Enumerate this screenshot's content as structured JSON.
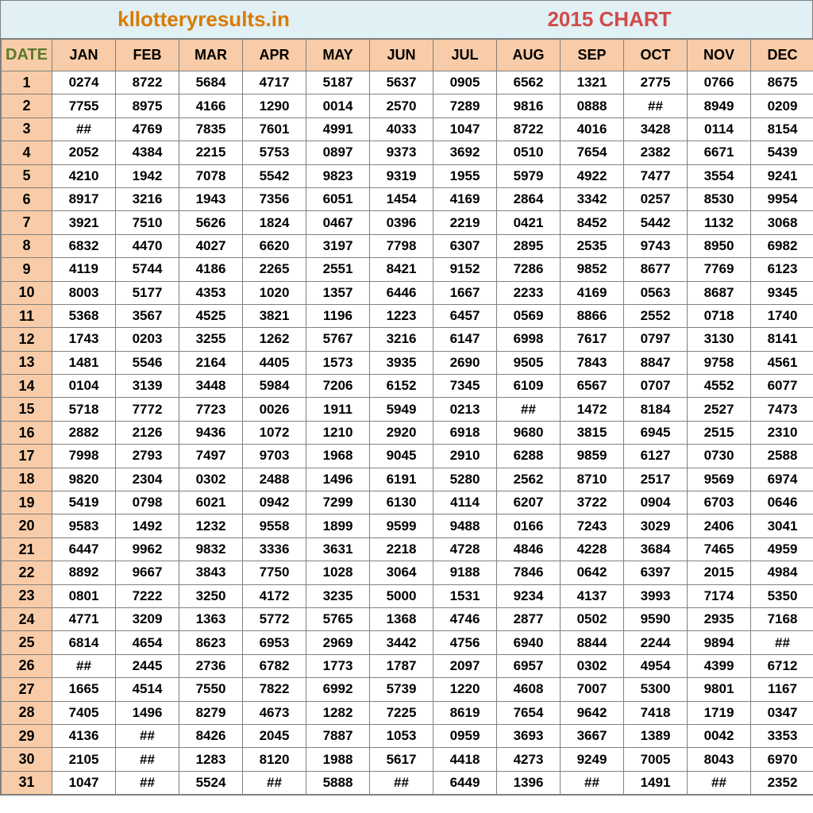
{
  "header": {
    "site_name": "kllotteryresults.in",
    "chart_title": "2015 CHART"
  },
  "table": {
    "type": "calendar-table",
    "date_header": "DATE",
    "months": [
      "JAN",
      "FEB",
      "MAR",
      "APR",
      "MAY",
      "JUN",
      "JUL",
      "AUG",
      "SEP",
      "OCT",
      "NOV",
      "DEC"
    ],
    "dates": [
      "1",
      "2",
      "3",
      "4",
      "5",
      "6",
      "7",
      "8",
      "9",
      "10",
      "11",
      "12",
      "13",
      "14",
      "15",
      "16",
      "17",
      "18",
      "19",
      "20",
      "21",
      "22",
      "23",
      "24",
      "25",
      "26",
      "27",
      "28",
      "29",
      "30",
      "31"
    ],
    "rows": [
      [
        "0274",
        "8722",
        "5684",
        "4717",
        "5187",
        "5637",
        "0905",
        "6562",
        "1321",
        "2775",
        "0766",
        "8675"
      ],
      [
        "7755",
        "8975",
        "4166",
        "1290",
        "0014",
        "2570",
        "7289",
        "9816",
        "0888",
        "##",
        "8949",
        "0209"
      ],
      [
        "##",
        "4769",
        "7835",
        "7601",
        "4991",
        "4033",
        "1047",
        "8722",
        "4016",
        "3428",
        "0114",
        "8154"
      ],
      [
        "2052",
        "4384",
        "2215",
        "5753",
        "0897",
        "9373",
        "3692",
        "0510",
        "7654",
        "2382",
        "6671",
        "5439"
      ],
      [
        "4210",
        "1942",
        "7078",
        "5542",
        "9823",
        "9319",
        "1955",
        "5979",
        "4922",
        "7477",
        "3554",
        "9241"
      ],
      [
        "8917",
        "3216",
        "1943",
        "7356",
        "6051",
        "1454",
        "4169",
        "2864",
        "3342",
        "0257",
        "8530",
        "9954"
      ],
      [
        "3921",
        "7510",
        "5626",
        "1824",
        "0467",
        "0396",
        "2219",
        "0421",
        "8452",
        "5442",
        "1132",
        "3068"
      ],
      [
        "6832",
        "4470",
        "4027",
        "6620",
        "3197",
        "7798",
        "6307",
        "2895",
        "2535",
        "9743",
        "8950",
        "6982"
      ],
      [
        "4119",
        "5744",
        "4186",
        "2265",
        "2551",
        "8421",
        "9152",
        "7286",
        "9852",
        "8677",
        "7769",
        "6123"
      ],
      [
        "8003",
        "5177",
        "4353",
        "1020",
        "1357",
        "6446",
        "1667",
        "2233",
        "4169",
        "0563",
        "8687",
        "9345"
      ],
      [
        "5368",
        "3567",
        "4525",
        "3821",
        "1196",
        "1223",
        "6457",
        "0569",
        "8866",
        "2552",
        "0718",
        "1740"
      ],
      [
        "1743",
        "0203",
        "3255",
        "1262",
        "5767",
        "3216",
        "6147",
        "6998",
        "7617",
        "0797",
        "3130",
        "8141"
      ],
      [
        "1481",
        "5546",
        "2164",
        "4405",
        "1573",
        "3935",
        "2690",
        "9505",
        "7843",
        "8847",
        "9758",
        "4561"
      ],
      [
        "0104",
        "3139",
        "3448",
        "5984",
        "7206",
        "6152",
        "7345",
        "6109",
        "6567",
        "0707",
        "4552",
        "6077"
      ],
      [
        "5718",
        "7772",
        "7723",
        "0026",
        "1911",
        "5949",
        "0213",
        "##",
        "1472",
        "8184",
        "2527",
        "7473"
      ],
      [
        "2882",
        "2126",
        "9436",
        "1072",
        "1210",
        "2920",
        "6918",
        "9680",
        "3815",
        "6945",
        "2515",
        "2310"
      ],
      [
        "7998",
        "2793",
        "7497",
        "9703",
        "1968",
        "9045",
        "2910",
        "6288",
        "9859",
        "6127",
        "0730",
        "2588"
      ],
      [
        "9820",
        "2304",
        "0302",
        "2488",
        "1496",
        "6191",
        "5280",
        "2562",
        "8710",
        "2517",
        "9569",
        "6974"
      ],
      [
        "5419",
        "0798",
        "6021",
        "0942",
        "7299",
        "6130",
        "4114",
        "6207",
        "3722",
        "0904",
        "6703",
        "0646"
      ],
      [
        "9583",
        "1492",
        "1232",
        "9558",
        "1899",
        "9599",
        "9488",
        "0166",
        "7243",
        "3029",
        "2406",
        "3041"
      ],
      [
        "6447",
        "9962",
        "9832",
        "3336",
        "3631",
        "2218",
        "4728",
        "4846",
        "4228",
        "3684",
        "7465",
        "4959"
      ],
      [
        "8892",
        "9667",
        "3843",
        "7750",
        "1028",
        "3064",
        "9188",
        "7846",
        "0642",
        "6397",
        "2015",
        "4984"
      ],
      [
        "0801",
        "7222",
        "3250",
        "4172",
        "3235",
        "5000",
        "1531",
        "9234",
        "4137",
        "3993",
        "7174",
        "5350"
      ],
      [
        "4771",
        "3209",
        "1363",
        "5772",
        "5765",
        "1368",
        "4746",
        "2877",
        "0502",
        "9590",
        "2935",
        "7168"
      ],
      [
        "6814",
        "4654",
        "8623",
        "6953",
        "2969",
        "3442",
        "4756",
        "6940",
        "8844",
        "2244",
        "9894",
        "##"
      ],
      [
        "##",
        "2445",
        "2736",
        "6782",
        "1773",
        "1787",
        "2097",
        "6957",
        "0302",
        "4954",
        "4399",
        "6712"
      ],
      [
        "1665",
        "4514",
        "7550",
        "7822",
        "6992",
        "5739",
        "1220",
        "4608",
        "7007",
        "5300",
        "9801",
        "1167"
      ],
      [
        "7405",
        "1496",
        "8279",
        "4673",
        "1282",
        "7225",
        "8619",
        "7654",
        "9642",
        "7418",
        "1719",
        "0347"
      ],
      [
        "4136",
        "##",
        "8426",
        "2045",
        "7887",
        "1053",
        "0959",
        "3693",
        "3667",
        "1389",
        "0042",
        "3353"
      ],
      [
        "2105",
        "##",
        "1283",
        "8120",
        "1988",
        "5617",
        "4418",
        "4273",
        "9249",
        "7005",
        "8043",
        "6970"
      ],
      [
        "1047",
        "##",
        "5524",
        "##",
        "5888",
        "##",
        "6449",
        "1396",
        "##",
        "1491",
        "##",
        "2352"
      ]
    ],
    "colors": {
      "header_bg": "#e0f0f4",
      "site_name_color": "#d97a00",
      "chart_title_color": "#d14a4a",
      "month_header_bg": "#f8cca8",
      "date_header_color": "#5a7a2a",
      "date_cell_bg": "#f8cca8",
      "cell_bg": "#ffffff",
      "border_color": "#808080",
      "text_color": "#000000"
    },
    "font_sizes": {
      "header": 26,
      "column_header": 18,
      "date_header": 20,
      "cell": 17,
      "date_cell": 18
    }
  }
}
